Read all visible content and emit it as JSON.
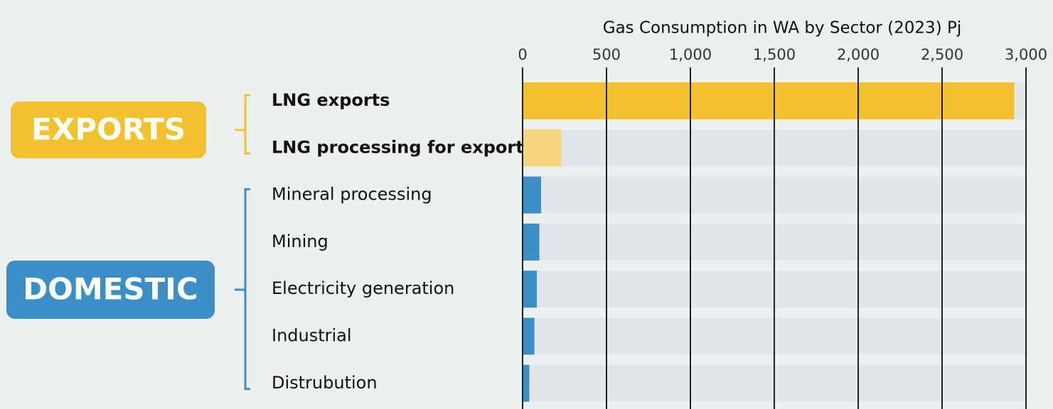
{
  "chart_data": {
    "type": "bar",
    "orientation": "horizontal",
    "title": "Gas Consumption in WA by Sector (2023) Pj",
    "categories": [
      "LNG exports",
      "LNG processing for export",
      "Mineral processing",
      "Mining",
      "Electricity generation",
      "Industrial",
      "Distrubution"
    ],
    "values": [
      2930,
      230,
      110,
      100,
      85,
      70,
      40
    ],
    "colors": [
      "#f2c12e",
      "#f5d57e",
      "#3b8ec6",
      "#3b8ec6",
      "#3b8ec6",
      "#3b8ec6",
      "#3b8ec6"
    ],
    "groups": [
      {
        "label": "EXPORTS",
        "color": "#f2c12e"
      },
      {
        "label": "DOMESTIC",
        "color": "#3b8ec6"
      }
    ],
    "xlim": [
      0,
      3000
    ],
    "xticks": [
      0,
      500,
      {
        "value": 1000,
        "label": "1,000"
      },
      {
        "value": 1500,
        "label": "1,500"
      },
      {
        "value": 2000,
        "label": "2,000"
      },
      {
        "value": 2500,
        "label": "2,500"
      },
      {
        "value": 3000,
        "label": "3,000"
      }
    ],
    "grid": true
  }
}
